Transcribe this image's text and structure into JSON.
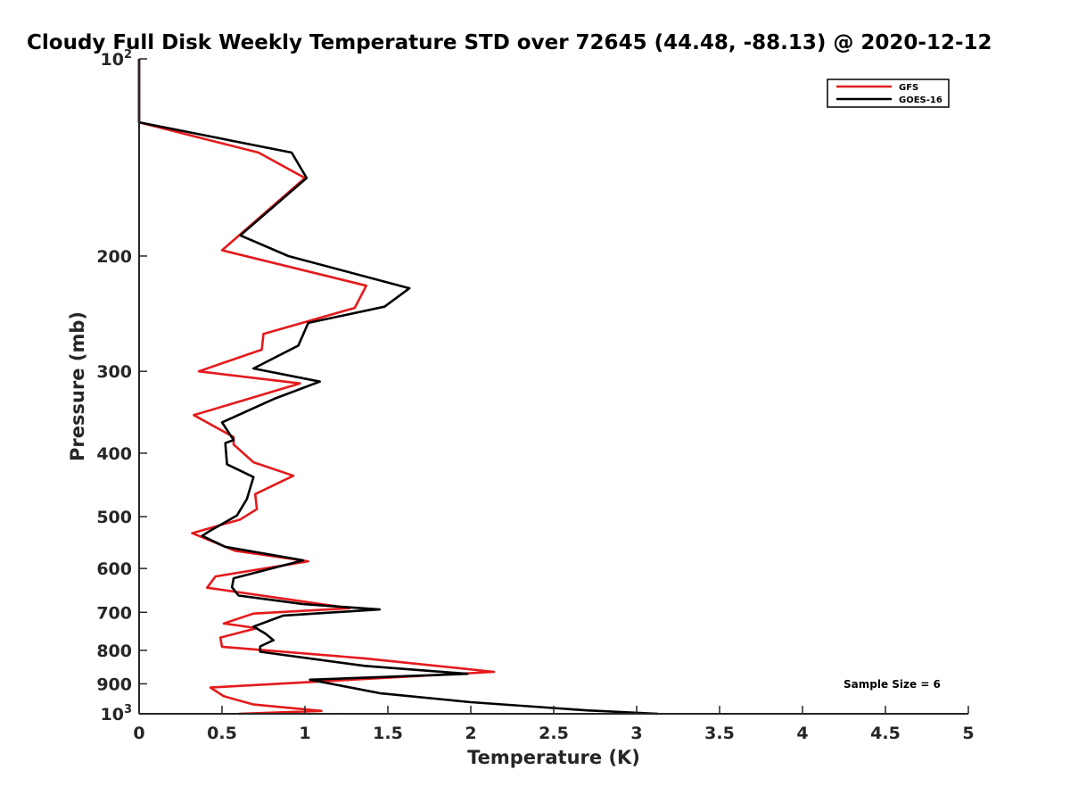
{
  "chart_data": {
    "type": "line",
    "title": "Cloudy Full Disk Weekly Temperature STD over 72645 (44.48, -88.13) @ 2020-12-12",
    "xlabel": "Temperature (K)",
    "ylabel": "Pressure (mb)",
    "xlim": [
      0,
      5
    ],
    "ylim": [
      1000,
      100
    ],
    "y_scale": "log",
    "y_reversed": true,
    "x_ticks": [
      "0",
      "0.5",
      "1",
      "1.5",
      "2",
      "2.5",
      "3",
      "3.5",
      "4",
      "4.5",
      "5"
    ],
    "y_ticks": [
      {
        "value": 100,
        "base": "10",
        "exp": "2"
      },
      {
        "value": 200,
        "label": "200"
      },
      {
        "value": 300,
        "label": "300"
      },
      {
        "value": 400,
        "label": "400"
      },
      {
        "value": 500,
        "label": "500"
      },
      {
        "value": 600,
        "label": "600"
      },
      {
        "value": 700,
        "label": "700"
      },
      {
        "value": 800,
        "label": "800"
      },
      {
        "value": 900,
        "label": "900"
      },
      {
        "value": 1000,
        "base": "10",
        "exp": "3"
      }
    ],
    "legend": {
      "placement": "top-right"
    },
    "annotation": "Sample Size = 6",
    "grid": false,
    "series": [
      {
        "name": "GFS",
        "color": "#e41a1c",
        "points": [
          [
            0,
            100
          ],
          [
            0,
            125
          ],
          [
            0.72,
            139
          ],
          [
            1.0,
            152
          ],
          [
            0.5,
            196
          ],
          [
            1.37,
            222
          ],
          [
            1.3,
            240
          ],
          [
            0.75,
            263
          ],
          [
            0.74,
            278
          ],
          [
            0.36,
            300
          ],
          [
            0.97,
            313
          ],
          [
            0.33,
            350
          ],
          [
            0.57,
            378
          ],
          [
            0.57,
            388
          ],
          [
            0.69,
            413
          ],
          [
            0.93,
            433
          ],
          [
            0.7,
            462
          ],
          [
            0.71,
            487
          ],
          [
            0.61,
            505
          ],
          [
            0.32,
            530
          ],
          [
            0.58,
            564
          ],
          [
            1.02,
            585
          ],
          [
            0.46,
            617
          ],
          [
            0.41,
            642
          ],
          [
            1.27,
            690
          ],
          [
            0.69,
            703
          ],
          [
            0.51,
            728
          ],
          [
            0.71,
            740
          ],
          [
            0.49,
            765
          ],
          [
            0.5,
            790
          ],
          [
            1.36,
            823
          ],
          [
            2.14,
            863
          ],
          [
            0.43,
            912
          ],
          [
            0.51,
            940
          ],
          [
            0.69,
            968
          ],
          [
            1.1,
            990
          ],
          [
            0.6,
            1000
          ]
        ]
      },
      {
        "name": "GOES-16",
        "color": "#000000",
        "points": [
          [
            0,
            100
          ],
          [
            0,
            125
          ],
          [
            0.92,
            139
          ],
          [
            1.01,
            152
          ],
          [
            0.61,
            186
          ],
          [
            0.9,
            200
          ],
          [
            1.63,
            224
          ],
          [
            1.48,
            239
          ],
          [
            1.02,
            253
          ],
          [
            0.96,
            274
          ],
          [
            0.69,
            297
          ],
          [
            1.09,
            311
          ],
          [
            0.82,
            330
          ],
          [
            0.5,
            359
          ],
          [
            0.57,
            382
          ],
          [
            0.52,
            386
          ],
          [
            0.53,
            416
          ],
          [
            0.69,
            435
          ],
          [
            0.65,
            470
          ],
          [
            0.59,
            498
          ],
          [
            0.42,
            527
          ],
          [
            0.38,
            535
          ],
          [
            0.52,
            556
          ],
          [
            0.99,
            583
          ],
          [
            0.57,
            621
          ],
          [
            0.56,
            641
          ],
          [
            0.6,
            660
          ],
          [
            0.99,
            680
          ],
          [
            1.45,
            693
          ],
          [
            0.87,
            708
          ],
          [
            0.69,
            736
          ],
          [
            0.76,
            754
          ],
          [
            0.81,
            772
          ],
          [
            0.73,
            789
          ],
          [
            0.73,
            804
          ],
          [
            1.36,
            845
          ],
          [
            1.98,
            869
          ],
          [
            1.03,
            887
          ],
          [
            1.45,
            930
          ],
          [
            2.0,
            960
          ],
          [
            2.7,
            988
          ],
          [
            3.13,
            1000
          ]
        ]
      }
    ]
  }
}
